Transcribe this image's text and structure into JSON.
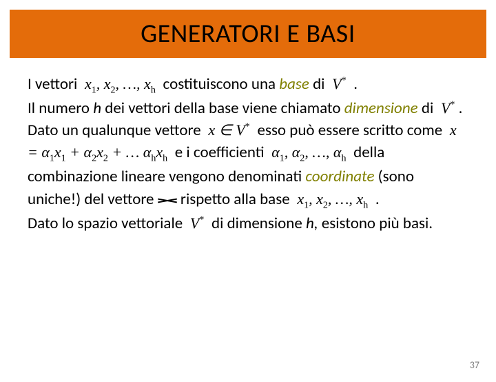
{
  "title": "GENERATORI E BASI",
  "colors": {
    "title_bg": "#e46c0a",
    "title_text": "#000000",
    "body_text": "#000000",
    "accent_olive": "#808000",
    "page_num": "#808080",
    "background": "#ffffff"
  },
  "typography": {
    "title_fontsize": 38,
    "body_fontsize": 23,
    "math_fontsize": 22,
    "pagenum_fontsize": 14,
    "body_font": "Calibri",
    "math_font": "Times New Roman"
  },
  "t": {
    "s1a": "I vettori ",
    "s1b": " costituiscono una ",
    "base": "base",
    "s1c": " di ",
    "s1d": " .",
    "s2a": "Il numero ",
    "h": "h",
    "s2b": " dei vettori della base viene chiamato ",
    "dimensione": "dimensione",
    "s2c": " di ",
    "s2d": " .",
    "s3a": "Dato un qualunque vettore ",
    "s3b": " esso può essere scritto come ",
    "s3c": " e i coefficienti ",
    "s3d": " della combinazione lineare vengono denominati ",
    "coordinate": "coordinate",
    "s3e": " (sono uniche!) del vettore",
    "s3f": " rispetto alla base ",
    "s3g": " .",
    "s4a": "Dato lo spazio vettoriale ",
    "s4b": " di dimensione ",
    "h2": "h,",
    "s4c": " esistono più basi."
  },
  "math": {
    "vectors_xh": "x₁, x₂, …, xₕ",
    "Vstar": "V*",
    "x_in_Vstar": "x ∈ V*",
    "lincomb": "x = α₁x₁ + α₂x₂ + … αₕxₕ",
    "alphas": "α₁, α₂, …, αₕ"
  },
  "page_number": "37"
}
